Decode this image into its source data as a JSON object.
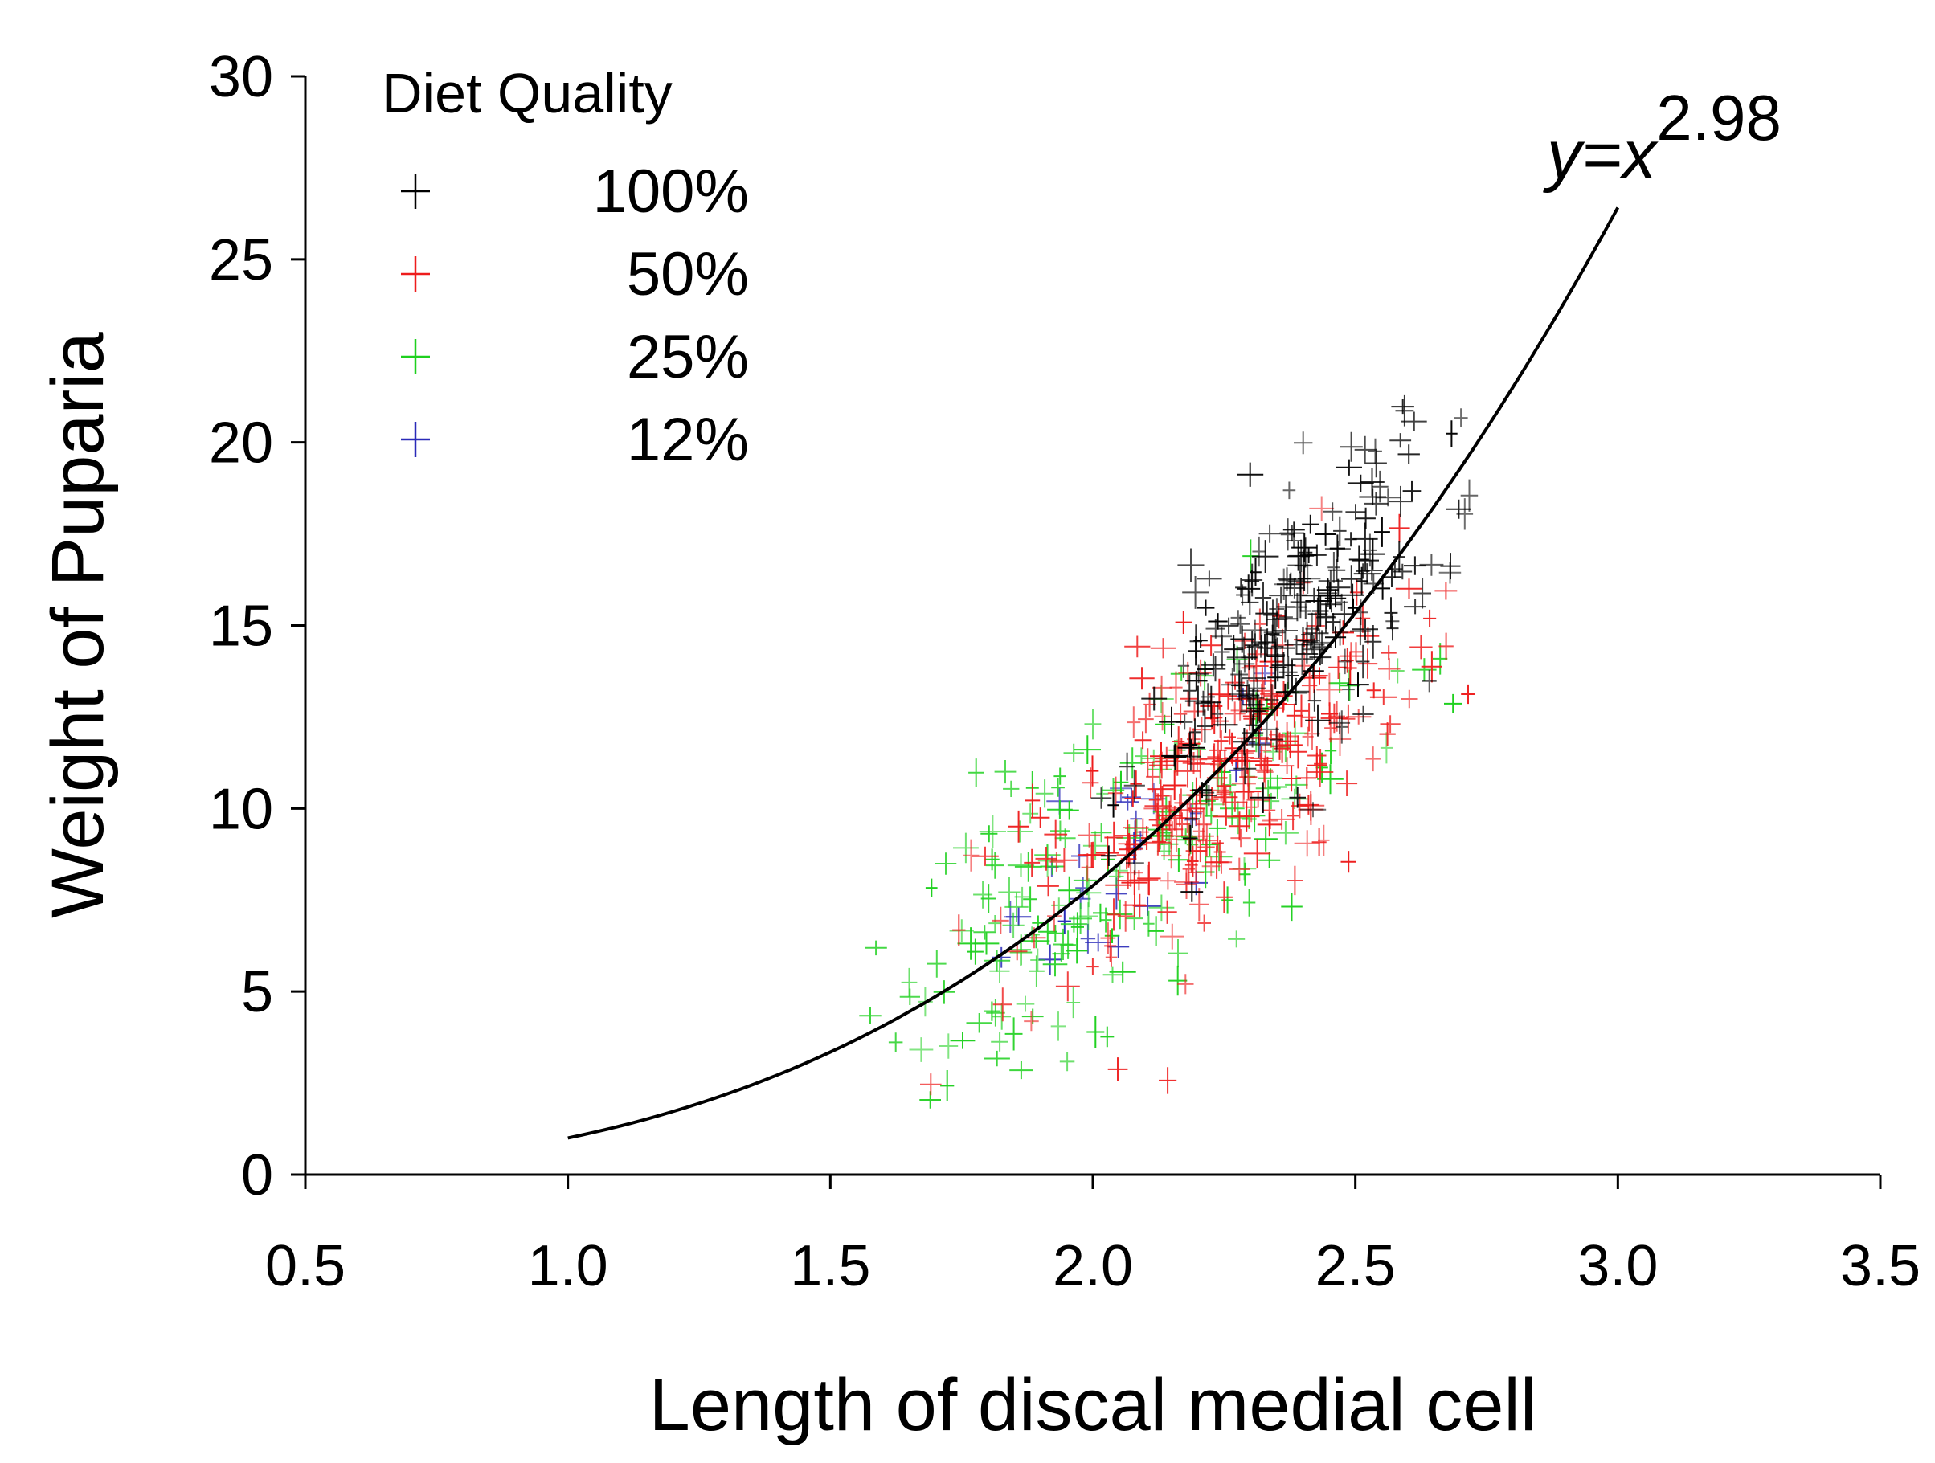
{
  "chart_data": {
    "type": "scatter",
    "title": "",
    "xlabel": "Length of discal medial cell",
    "ylabel": "Weight of Puparia",
    "xlim": [
      0.5,
      3.5
    ],
    "ylim": [
      0,
      30
    ],
    "x_ticks": [
      "0.5",
      "1.0",
      "1.5",
      "2.0",
      "2.5",
      "3.0",
      "3.5"
    ],
    "y_ticks": [
      "0",
      "5",
      "10",
      "15",
      "20",
      "25",
      "30"
    ],
    "legend": {
      "title": "Diet Quality",
      "position": "top-left"
    },
    "series": [
      {
        "name": "100%",
        "color": "#000000",
        "marker": "plus",
        "center": [
          2.38,
          15.0
        ],
        "spread": [
          0.14,
          2.4
        ],
        "count": 260
      },
      {
        "name": "50%",
        "color": "#ee1c1c",
        "marker": "plus",
        "center": [
          2.24,
          10.8
        ],
        "spread": [
          0.17,
          2.4
        ],
        "count": 300
      },
      {
        "name": "25%",
        "color": "#1ed01e",
        "marker": "plus",
        "center": [
          2.02,
          8.4
        ],
        "spread": [
          0.24,
          2.8
        ],
        "count": 200
      },
      {
        "name": "12%",
        "color": "#2a2ab8",
        "marker": "plus",
        "center": [
          2.1,
          9.5
        ],
        "spread": [
          0.15,
          2.0
        ],
        "count": 30
      }
    ],
    "fit": {
      "label_prefix": "y=x",
      "exponent_label": "2.98",
      "exponent": 2.98,
      "x_range": [
        1.0,
        3.0
      ],
      "color": "#000000"
    }
  }
}
